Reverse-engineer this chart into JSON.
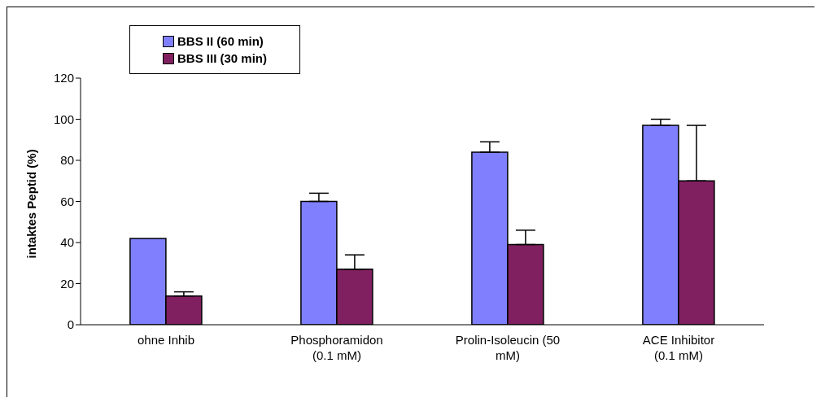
{
  "chart_data": {
    "type": "bar",
    "ylabel": "intaktes Peptid (%)",
    "categories": [
      "ohne Inhib",
      "Phosphoramidon\n(0.1 mM)",
      "Prolin-Isoleucin (50\nmM)",
      "ACE Inhibitor\n(0.1 mM)"
    ],
    "series": [
      {
        "name": "BBS II (60 min)",
        "color": "#8080ff",
        "values": [
          42,
          60,
          84,
          97
        ],
        "errors": [
          null,
          [
            60,
            64
          ],
          [
            84,
            89
          ],
          [
            97,
            100
          ]
        ]
      },
      {
        "name": "BBS III (30 min)",
        "color": "#802060",
        "values": [
          14,
          27,
          39,
          70
        ],
        "errors": [
          [
            14,
            16
          ],
          [
            27,
            34
          ],
          [
            39,
            46
          ],
          [
            70,
            97
          ]
        ]
      }
    ],
    "ylim": [
      0,
      120
    ],
    "yticks": [
      0,
      20,
      40,
      60,
      80,
      100,
      120
    ],
    "grid": false,
    "legend": "top left"
  }
}
